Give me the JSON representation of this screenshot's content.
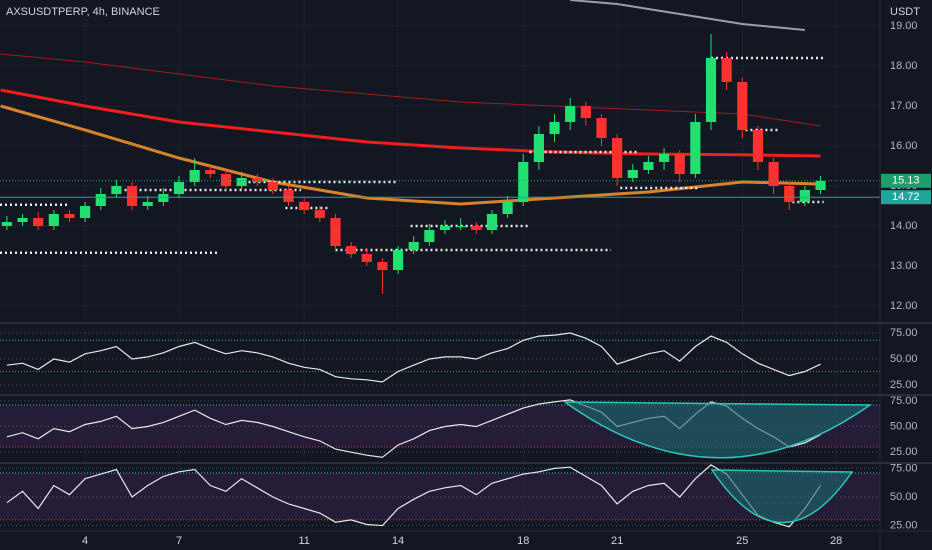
{
  "chart_data": [
    {
      "type": "candlestick",
      "title": "AXSUSDTPERP, 4h, BINANCE",
      "y_label": "USDT",
      "x": [
        1.5,
        2,
        2.5,
        3,
        3.5,
        4,
        4.5,
        5,
        5.5,
        6,
        6.5,
        7,
        7.5,
        8,
        8.5,
        9,
        9.5,
        10,
        10.5,
        11,
        11.5,
        12,
        12.5,
        13,
        13.5,
        14,
        14.5,
        15,
        15.5,
        16,
        16.5,
        17,
        17.5,
        18,
        18.5,
        19,
        19.5,
        20,
        20.5,
        21,
        21.5,
        22,
        22.5,
        23,
        23.5,
        24,
        24.5,
        25,
        25.5,
        26,
        26.5,
        27,
        27.5
      ],
      "open": [
        14.0,
        14.1,
        14.2,
        14.0,
        14.3,
        14.2,
        14.5,
        14.8,
        15.0,
        14.5,
        14.6,
        14.8,
        15.1,
        15.4,
        15.3,
        15.0,
        15.2,
        15.1,
        14.9,
        14.6,
        14.4,
        14.2,
        13.5,
        13.3,
        13.1,
        12.9,
        13.4,
        13.6,
        13.9,
        14.0,
        14.0,
        13.9,
        14.3,
        14.6,
        15.6,
        16.3,
        16.6,
        17.0,
        16.7,
        16.2,
        15.2,
        15.4,
        15.6,
        15.8,
        15.3,
        16.6,
        18.2,
        17.6,
        16.4,
        15.6,
        15.0,
        14.6,
        14.9
      ],
      "high": [
        14.25,
        14.3,
        14.35,
        14.4,
        14.4,
        14.6,
        14.95,
        15.15,
        15.1,
        14.75,
        14.95,
        15.25,
        15.7,
        15.5,
        15.4,
        15.35,
        15.3,
        15.2,
        15.0,
        14.7,
        14.5,
        14.3,
        13.6,
        13.45,
        13.2,
        13.5,
        13.75,
        14.05,
        14.15,
        14.2,
        14.1,
        14.4,
        14.75,
        15.8,
        16.5,
        16.8,
        17.2,
        17.1,
        16.8,
        16.3,
        15.55,
        15.75,
        15.95,
        15.9,
        16.8,
        18.8,
        18.35,
        17.7,
        16.5,
        15.7,
        15.1,
        15.0,
        15.25
      ],
      "low": [
        13.9,
        14.0,
        13.9,
        13.9,
        14.1,
        14.1,
        14.4,
        14.7,
        14.4,
        14.4,
        14.5,
        14.7,
        15.0,
        15.2,
        14.9,
        14.9,
        15.0,
        14.8,
        14.5,
        14.3,
        14.1,
        13.4,
        13.2,
        13.0,
        12.3,
        12.8,
        13.3,
        13.5,
        13.8,
        13.9,
        13.8,
        13.8,
        14.2,
        14.5,
        15.4,
        16.1,
        16.4,
        16.5,
        16.0,
        15.0,
        15.1,
        15.3,
        15.4,
        15.1,
        15.2,
        16.4,
        17.4,
        16.2,
        15.4,
        14.8,
        14.4,
        14.5,
        14.8
      ],
      "close": [
        14.1,
        14.2,
        14.0,
        14.3,
        14.2,
        14.5,
        14.8,
        15.0,
        14.5,
        14.6,
        14.8,
        15.1,
        15.4,
        15.3,
        15.0,
        15.2,
        15.1,
        14.9,
        14.6,
        14.4,
        14.2,
        13.5,
        13.3,
        13.1,
        12.9,
        13.4,
        13.6,
        13.9,
        14.0,
        14.0,
        13.9,
        14.3,
        14.6,
        15.6,
        16.3,
        16.6,
        17.0,
        16.7,
        16.2,
        15.2,
        15.4,
        15.6,
        15.8,
        15.3,
        16.6,
        18.2,
        17.6,
        16.4,
        15.6,
        15.0,
        14.6,
        14.9,
        15.13
      ],
      "up_color": "#22e070",
      "down_color": "#ff3030",
      "xlim": [
        1.28,
        29.4
      ],
      "xticks": [
        4,
        7,
        11,
        14,
        18,
        21,
        25,
        28
      ],
      "ylim": [
        11.6,
        19.65
      ],
      "yticks": [
        {
          "value": 12,
          "label": "12.00"
        },
        {
          "value": 13,
          "label": "13.00"
        },
        {
          "value": 14,
          "label": "14.00"
        },
        {
          "value": 15,
          "label": "15.00"
        },
        {
          "value": 16,
          "label": "16.00"
        },
        {
          "value": 17,
          "label": "17.00"
        },
        {
          "value": 18,
          "label": "18.00"
        },
        {
          "value": 19,
          "label": "19.00"
        }
      ],
      "grid": true,
      "lines": [
        {
          "color": "#f01e1e",
          "x": [
            1.3,
            4,
            7,
            10,
            13,
            16,
            19,
            22,
            25,
            27.5
          ],
          "values": [
            17.4,
            17.0,
            16.6,
            16.35,
            16.1,
            15.95,
            15.85,
            15.8,
            15.78,
            15.75
          ]
        },
        {
          "color": "#d9822b",
          "x": [
            1.3,
            4,
            7,
            10,
            13,
            16,
            19,
            22,
            25,
            27.5
          ],
          "values": [
            17.0,
            16.4,
            15.7,
            15.1,
            14.7,
            14.55,
            14.7,
            14.85,
            15.1,
            15.05
          ]
        },
        {
          "color": "#a11d1d",
          "x": [
            1.3,
            4,
            7,
            10,
            13,
            16,
            19,
            22,
            25,
            27.5
          ],
          "values": [
            18.3,
            18.1,
            17.8,
            17.5,
            17.3,
            17.1,
            17.0,
            16.9,
            16.8,
            16.5
          ]
        },
        {
          "color": "#9aa0a8",
          "x": [
            19.5,
            21,
            23,
            25,
            27
          ],
          "values": [
            19.65,
            19.55,
            19.3,
            19.05,
            18.9
          ]
        }
      ],
      "levels": [
        {
          "x": [
            1.28,
            3.5
          ],
          "value": 14.53
        },
        {
          "x": [
            1.28,
            8.3
          ],
          "value": 13.33
        },
        {
          "x": [
            5.1,
            10.9
          ],
          "value": 14.9
        },
        {
          "x": [
            8.9,
            14.0
          ],
          "value": 15.1
        },
        {
          "x": [
            10.4,
            11.8
          ],
          "value": 14.45
        },
        {
          "x": [
            12.0,
            20.8
          ],
          "value": 13.4
        },
        {
          "x": [
            14.4,
            18.2
          ],
          "value": 14.0
        },
        {
          "x": [
            18.2,
            21.7
          ],
          "value": 15.85
        },
        {
          "x": [
            21.1,
            23.6
          ],
          "value": 14.95
        },
        {
          "x": [
            24.0,
            27.6
          ],
          "value": 18.2
        },
        {
          "x": [
            25.1,
            26.2
          ],
          "value": 16.4
        },
        {
          "x": [
            26.6,
            27.6
          ],
          "value": 14.6
        }
      ],
      "price_lines": [
        {
          "value": 15.13,
          "color": "#1e9e6a"
        },
        {
          "value": 14.72,
          "color": "#1fa69a"
        }
      ]
    },
    {
      "type": "line",
      "color": "#e8e8e8",
      "ylim": [
        17.3,
        82.7
      ],
      "band": [
        38,
        68
      ],
      "band_fill": false,
      "yticks": [
        {
          "value": 25,
          "label": "25.00"
        },
        {
          "value": 50,
          "label": "50.00"
        },
        {
          "value": 75,
          "label": "75.00"
        }
      ],
      "values": [
        44,
        46,
        40,
        50,
        47,
        55,
        58,
        62,
        50,
        52,
        56,
        62,
        66,
        60,
        55,
        58,
        56,
        52,
        46,
        42,
        40,
        33,
        31,
        30,
        28,
        38,
        44,
        50,
        52,
        52,
        50,
        56,
        60,
        68,
        72,
        73,
        75,
        70,
        62,
        45,
        50,
        55,
        58,
        48,
        62,
        72,
        66,
        55,
        46,
        40,
        34,
        38,
        45
      ]
    },
    {
      "type": "line",
      "color": "#e8e8e8",
      "ylim": [
        15.4,
        79.8
      ],
      "band": [
        30,
        71
      ],
      "band_fill": true,
      "yticks": [
        {
          "value": 25,
          "label": "25.00"
        },
        {
          "value": 50,
          "label": "50.00"
        },
        {
          "value": 75,
          "label": "75.00"
        }
      ],
      "values": [
        40,
        44,
        38,
        48,
        45,
        52,
        55,
        60,
        48,
        50,
        54,
        60,
        66,
        58,
        52,
        56,
        54,
        50,
        45,
        40,
        36,
        28,
        25,
        22,
        20,
        32,
        38,
        46,
        50,
        52,
        50,
        56,
        62,
        68,
        72,
        74,
        76,
        70,
        64,
        50,
        54,
        58,
        60,
        48,
        62,
        74,
        70,
        58,
        48,
        40,
        30,
        34,
        42
      ]
    },
    {
      "type": "line",
      "color": "#e8e8e8",
      "ylim": [
        21.2,
        78.8
      ],
      "band": [
        30,
        71
      ],
      "band_fill": true,
      "yticks": [
        {
          "value": 25,
          "label": "25.00"
        },
        {
          "value": 50,
          "label": "50.00"
        },
        {
          "value": 75,
          "label": "75.00"
        }
      ],
      "values": [
        45,
        55,
        40,
        60,
        52,
        66,
        70,
        74,
        50,
        60,
        68,
        72,
        74,
        60,
        55,
        66,
        58,
        50,
        44,
        40,
        36,
        28,
        30,
        26,
        25,
        40,
        48,
        55,
        58,
        60,
        52,
        62,
        66,
        70,
        72,
        75,
        76,
        68,
        60,
        44,
        55,
        60,
        62,
        50,
        66,
        78,
        70,
        52,
        34,
        28,
        24,
        40,
        60
      ]
    }
  ]
}
